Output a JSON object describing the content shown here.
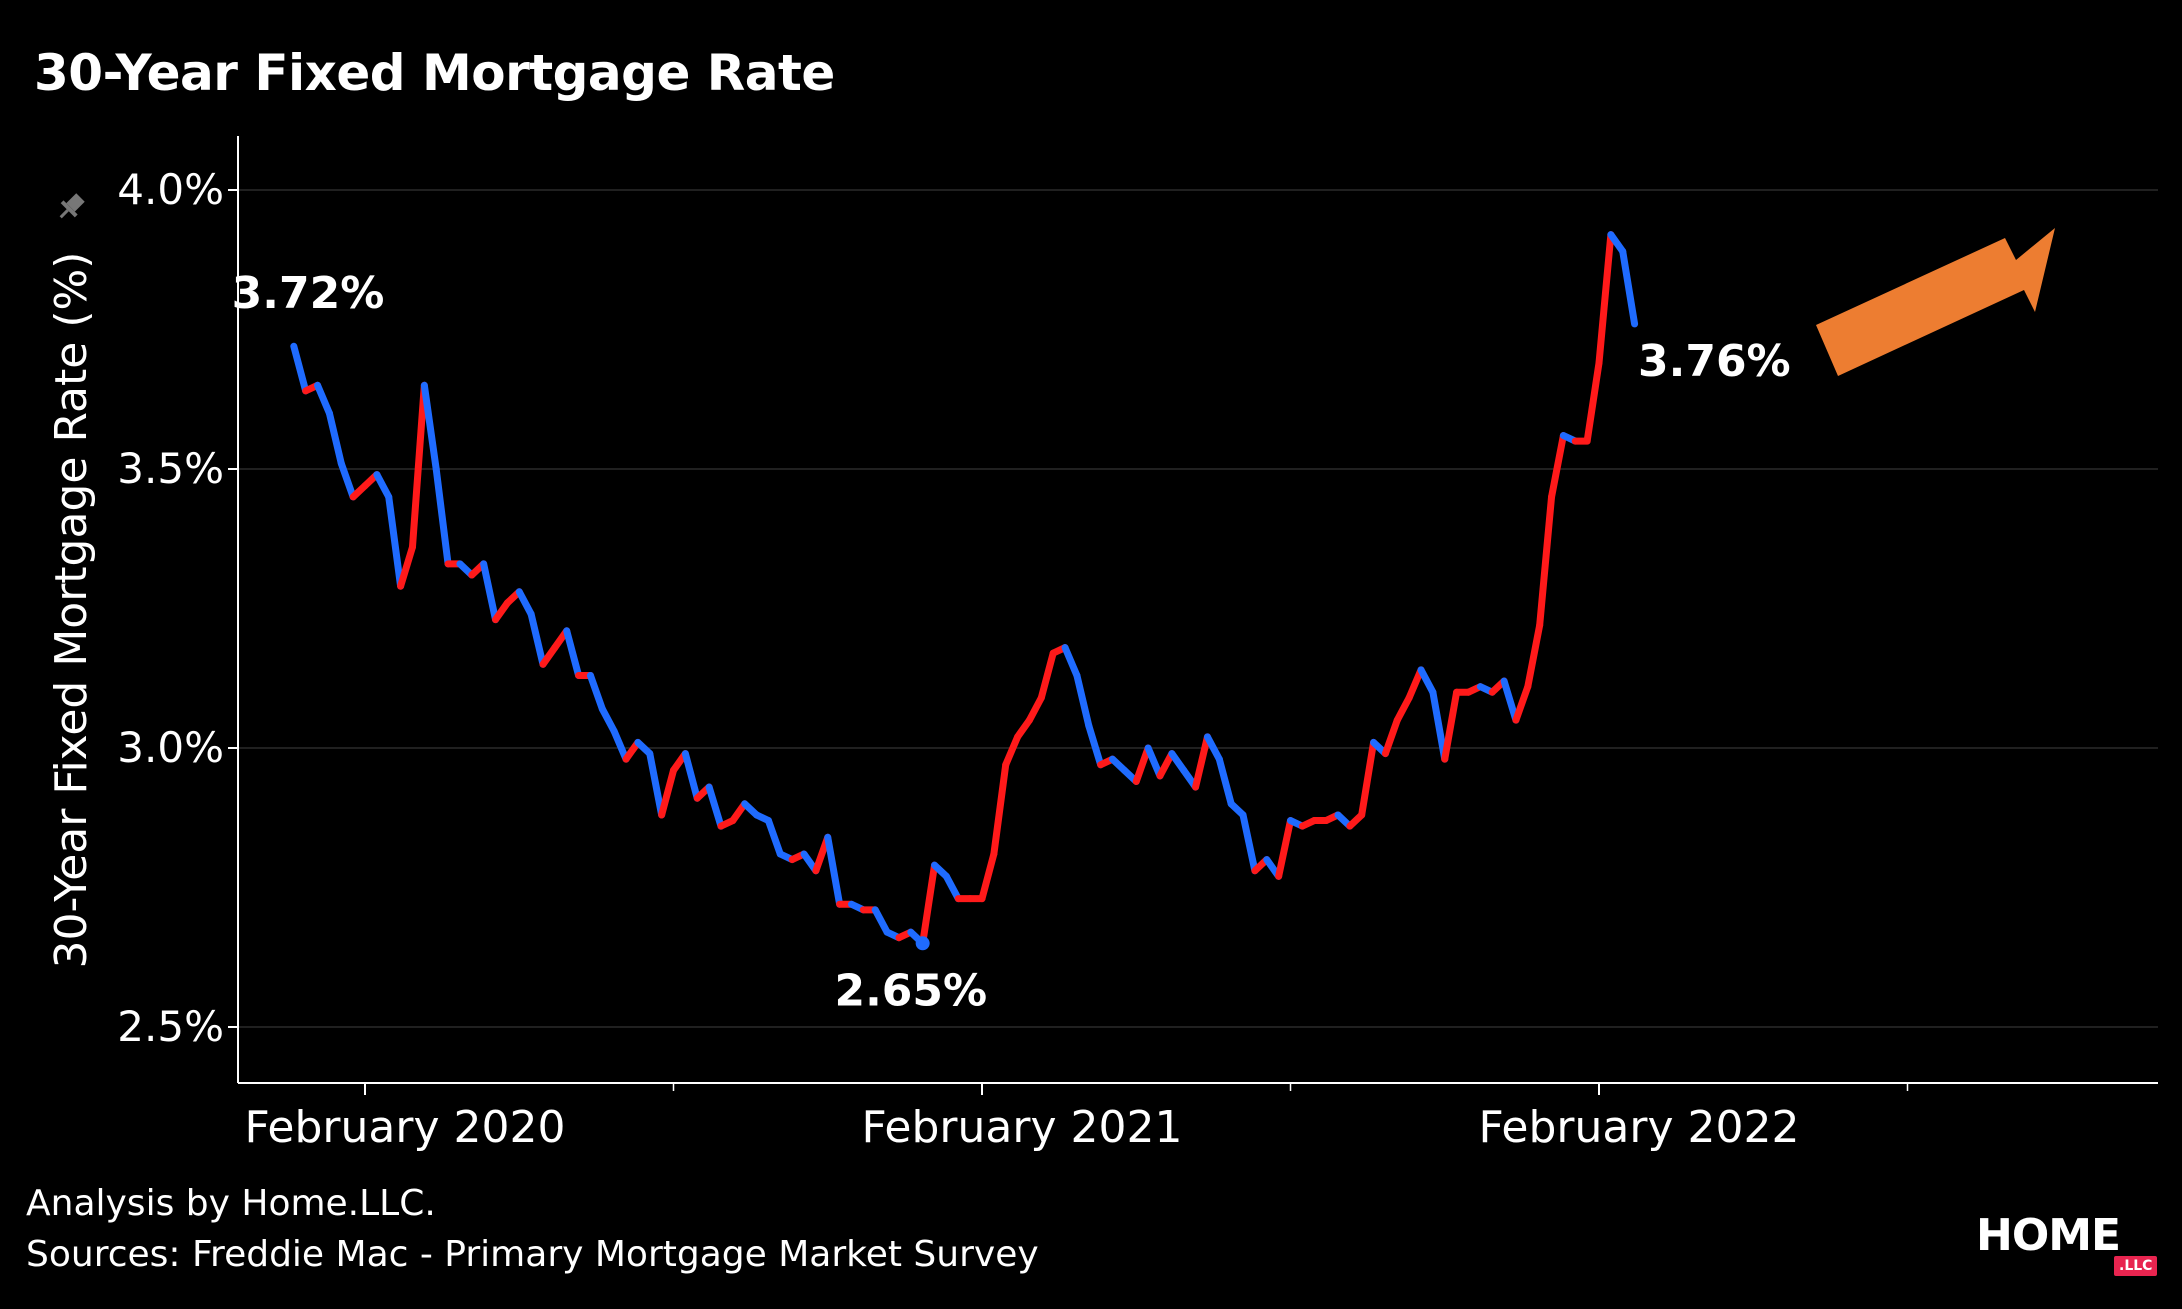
{
  "title": "30-Year Fixed Mortgage Rate",
  "footer": {
    "analysis": "Analysis by Home.LLC.",
    "sources": "Sources: Freddie Mac - Primary Mortgage Market Survey"
  },
  "logo": {
    "text": "HOME",
    "badge": ".LLC"
  },
  "colors": {
    "up": "#ff1a1a",
    "down": "#1f6bff",
    "arrow": "#ed7d31",
    "grid": "#2a2a2a",
    "axis": "#ffffff"
  },
  "chart_data": {
    "type": "line",
    "title": "30-Year Fixed Mortgage Rate",
    "ylabel": "30-Year Fixed Mortgage Rate (%)",
    "xlabel": "",
    "ylim": [
      2.4,
      4.1
    ],
    "yticks": [
      2.5,
      3.0,
      3.5,
      4.0
    ],
    "ytick_labels": [
      "2.5%",
      "3.0%",
      "3.5%",
      "4.0%"
    ],
    "xticks": [
      {
        "label": "February 2020",
        "week": 6
      },
      {
        "label": "February 2021",
        "week": 58
      },
      {
        "label": "February 2022",
        "week": 110
      }
    ],
    "xlim": [
      -4,
      158
    ],
    "annotations": [
      {
        "text": "3.72%",
        "week": 0,
        "value": 3.72
      },
      {
        "text": "2.65%",
        "week": 52,
        "value": 2.65
      },
      {
        "text": "3.76%",
        "week": 115,
        "value": 3.76
      }
    ],
    "series": [
      {
        "values": [
          3.72,
          3.64,
          3.65,
          3.6,
          3.51,
          3.45,
          3.47,
          3.49,
          3.45,
          3.29,
          3.36,
          3.65,
          3.5,
          3.33,
          3.33,
          3.31,
          3.33,
          3.23,
          3.26,
          3.28,
          3.24,
          3.15,
          3.18,
          3.21,
          3.13,
          3.13,
          3.07,
          3.03,
          2.98,
          3.01,
          2.99,
          2.88,
          2.96,
          2.99,
          2.91,
          2.93,
          2.86,
          2.87,
          2.9,
          2.88,
          2.87,
          2.81,
          2.8,
          2.81,
          2.78,
          2.84,
          2.72,
          2.72,
          2.71,
          2.71,
          2.67,
          2.66,
          2.67,
          2.65,
          2.79,
          2.77,
          2.73,
          2.73,
          2.73,
          2.81,
          2.97,
          3.02,
          3.05,
          3.09,
          3.17,
          3.18,
          3.13,
          3.04,
          2.97,
          2.98,
          2.96,
          2.94,
          3.0,
          2.95,
          2.99,
          2.96,
          2.93,
          3.02,
          2.98,
          2.9,
          2.88,
          2.78,
          2.8,
          2.77,
          2.87,
          2.86,
          2.87,
          2.87,
          2.88,
          2.86,
          2.88,
          3.01,
          2.99,
          3.05,
          3.09,
          3.14,
          3.1,
          2.98,
          3.1,
          3.1,
          3.11,
          3.1,
          3.12,
          3.05,
          3.11,
          3.22,
          3.45,
          3.56,
          3.55,
          3.55,
          3.69,
          3.92,
          3.89,
          3.76
        ]
      }
    ]
  }
}
